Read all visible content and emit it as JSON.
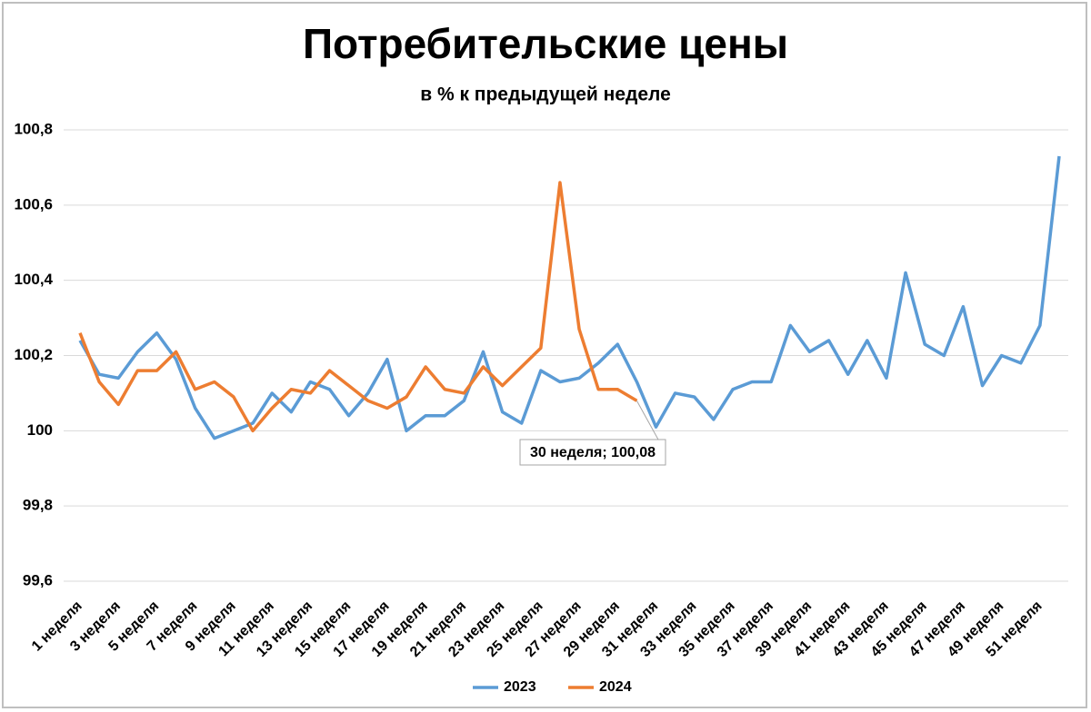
{
  "chart_data": {
    "type": "line",
    "title": "Потребительские цены",
    "subtitle": "в % к предыдущей неделе",
    "categories": [
      "1 неделя",
      null,
      "3 неделя",
      null,
      "5 неделя",
      null,
      "7 неделя",
      null,
      "9 неделя",
      null,
      "11 неделя",
      null,
      "13 неделя",
      null,
      "15 неделя",
      null,
      "17 неделя",
      null,
      "19 неделя",
      null,
      "21 неделя",
      null,
      "23 неделя",
      null,
      "25 неделя",
      null,
      "27 неделя",
      null,
      "29 неделя",
      null,
      "31 неделя",
      null,
      "33 неделя",
      null,
      "35 неделя",
      null,
      "37 неделя",
      null,
      "39 неделя",
      null,
      "41 неделя",
      null,
      "43 неделя",
      null,
      "45 неделя",
      null,
      "47 неделя",
      null,
      "49 неделя",
      null,
      "51 неделя",
      null
    ],
    "series": [
      {
        "name": "2023",
        "color": "#5b9bd5",
        "values": [
          100.24,
          100.15,
          100.14,
          100.21,
          100.26,
          100.19,
          100.06,
          99.98,
          100.0,
          100.02,
          100.1,
          100.05,
          100.13,
          100.11,
          100.04,
          100.1,
          100.19,
          100.0,
          100.04,
          100.04,
          100.08,
          100.21,
          100.05,
          100.02,
          100.16,
          100.13,
          100.14,
          100.18,
          100.23,
          100.13,
          100.01,
          100.1,
          100.09,
          100.03,
          100.11,
          100.13,
          100.13,
          100.28,
          100.21,
          100.24,
          100.15,
          100.24,
          100.14,
          100.42,
          100.23,
          100.2,
          100.33,
          100.12,
          100.2,
          100.18,
          100.28,
          100.73
        ]
      },
      {
        "name": "2024",
        "color": "#ed7d31",
        "values": [
          100.26,
          100.13,
          100.07,
          100.16,
          100.16,
          100.21,
          100.11,
          100.13,
          100.09,
          100.0,
          100.06,
          100.11,
          100.1,
          100.16,
          100.12,
          100.08,
          100.06,
          100.09,
          100.17,
          100.11,
          100.1,
          100.17,
          100.12,
          100.17,
          100.22,
          100.66,
          100.27,
          100.11,
          100.11,
          100.08,
          null,
          null,
          null,
          null,
          null,
          null,
          null,
          null,
          null,
          null,
          null,
          null,
          null,
          null,
          null,
          null,
          null,
          null,
          null,
          null,
          null,
          null
        ],
        "value_labels": [
          null,
          null,
          null,
          null,
          null,
          null,
          null,
          null,
          null,
          null,
          null,
          null,
          null,
          null,
          null,
          null,
          null,
          null,
          null,
          null,
          null,
          null,
          null,
          null,
          null,
          null,
          null,
          null,
          null,
          "30 неделя; 100,08",
          null,
          null,
          null,
          null,
          null,
          null,
          null,
          null,
          null,
          null,
          null,
          null,
          null,
          null,
          null,
          null,
          null,
          null,
          null,
          null,
          null,
          null
        ]
      }
    ],
    "ylim": [
      99.6,
      100.8
    ],
    "yticks": [
      {
        "value": 99.6,
        "label": "99,6"
      },
      {
        "value": 99.8,
        "label": "99,8"
      },
      100,
      {
        "value": 100.2,
        "label": "100,2"
      },
      {
        "value": 100.4,
        "label": "100,4"
      },
      {
        "value": 100.6,
        "label": "100,6"
      },
      {
        "value": 100.8,
        "label": "100,8"
      }
    ],
    "grid": true,
    "legend": "bottom"
  }
}
